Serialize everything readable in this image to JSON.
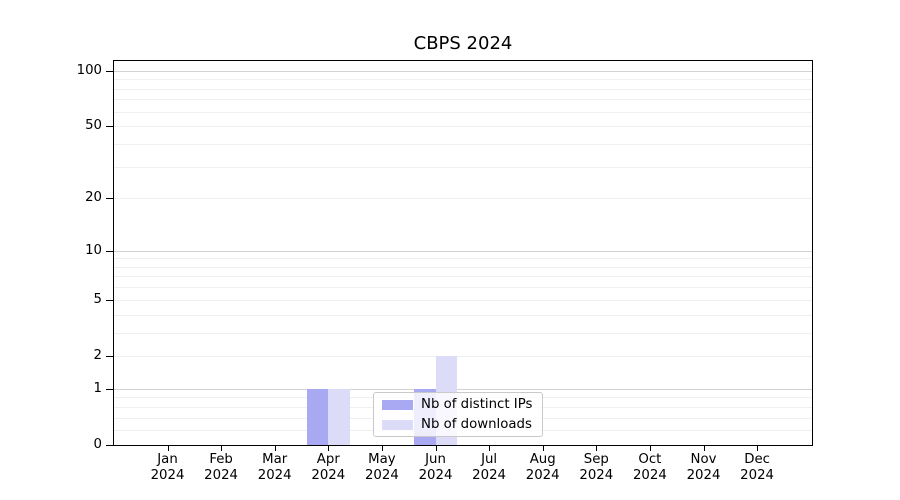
{
  "title": "CBPS 2024",
  "chart_data": {
    "type": "bar",
    "title": "CBPS 2024",
    "x_categories": [
      "Jan 2024",
      "Feb 2024",
      "Mar 2024",
      "Apr 2024",
      "May 2024",
      "Jun 2024",
      "Jul 2024",
      "Aug 2024",
      "Sep 2024",
      "Oct 2024",
      "Nov 2024",
      "Dec 2024"
    ],
    "series": [
      {
        "name": "Nb of distinct IPs",
        "color": "#a8a8f3",
        "values": [
          0,
          0,
          0,
          1,
          0,
          1,
          0,
          0,
          0,
          0,
          0,
          0
        ]
      },
      {
        "name": "Nb of downloads",
        "color": "#dcdcf9",
        "values": [
          0,
          0,
          0,
          1,
          0,
          2,
          0,
          0,
          0,
          0,
          0,
          0
        ]
      }
    ],
    "yscale": "log1p",
    "ylim": [
      0,
      113
    ],
    "y_tick_labels": [
      0,
      1,
      2,
      5,
      10,
      20,
      50,
      100
    ],
    "grid_major_values": [
      1,
      10,
      100
    ],
    "grid_minor_values": [
      0.2,
      0.4,
      0.6,
      0.8,
      2,
      3,
      4,
      5,
      6,
      7,
      8,
      9,
      20,
      30,
      40,
      50,
      60,
      70,
      80,
      90
    ],
    "grid": true,
    "legend_position": "lower center",
    "colors": {
      "grid_major": "#d2d2d2",
      "grid_minor": "#efefef",
      "spine": "#000000",
      "text": "#000000",
      "legend_border": "#c9c9c9",
      "background": "#ffffff"
    }
  }
}
